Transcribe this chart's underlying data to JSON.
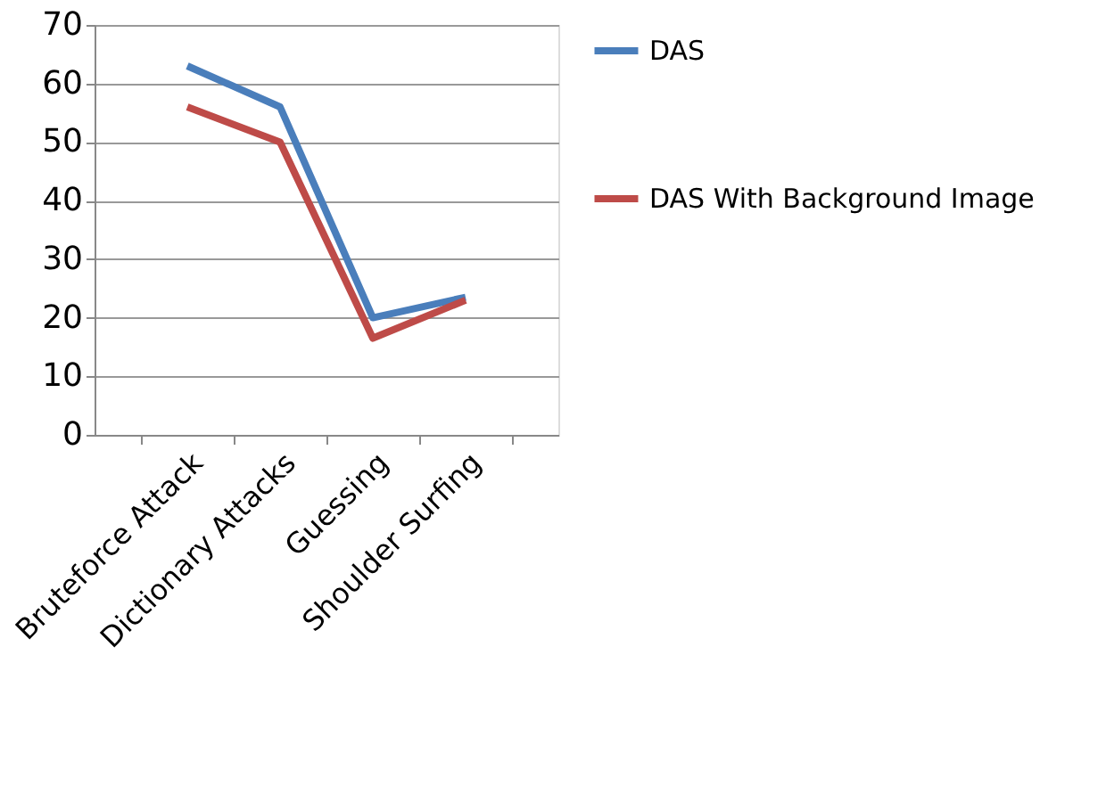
{
  "chart_data": {
    "type": "line",
    "categories": [
      "Bruteforce Attack",
      "Dictionary Attacks",
      "Guessing",
      "Shoulder Surfing"
    ],
    "series": [
      {
        "name": "DAS",
        "color": "#4a7ebb",
        "values": [
          63,
          56,
          20,
          23.5
        ]
      },
      {
        "name": "DAS With Background Image",
        "color": "#be4b48",
        "values": [
          56,
          50,
          16.5,
          23
        ]
      }
    ],
    "ylim": [
      0,
      70
    ],
    "yticks": [
      0,
      10,
      20,
      30,
      40,
      50,
      60,
      70
    ],
    "grid": "y",
    "legend": "right",
    "marker": "none",
    "line_style": "solid"
  }
}
